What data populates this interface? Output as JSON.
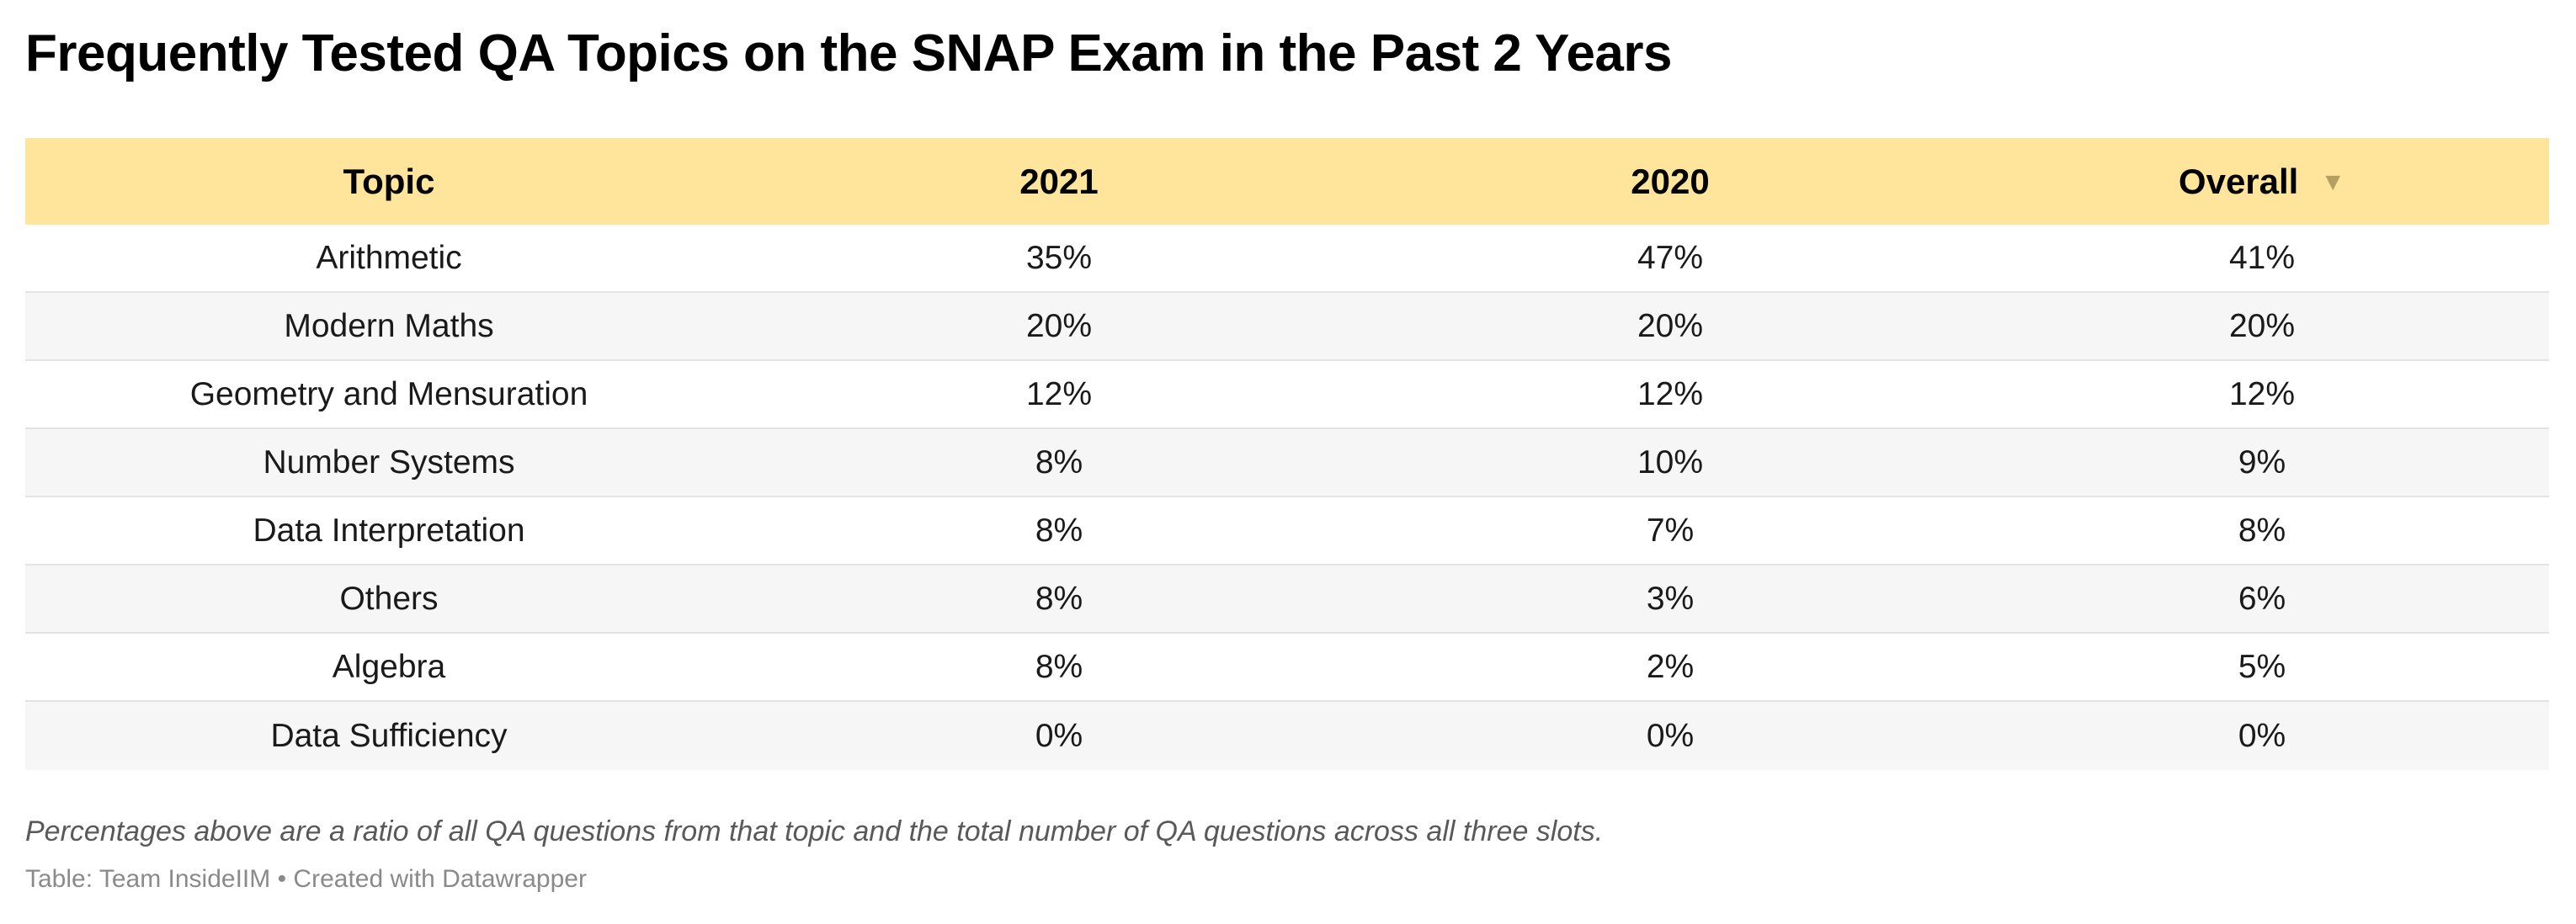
{
  "colors": {
    "header_bg": "#ffe49c",
    "stripe_bg": "#f6f6f6",
    "row_bg": "#ffffff",
    "divider": "#e3e3e3",
    "sort_icon": "#b59f63"
  },
  "chart_data": {
    "type": "table",
    "title": "Frequently Tested QA Topics on the SNAP Exam in the Past 2 Years",
    "columns": [
      "Topic",
      "2021",
      "2020",
      "Overall"
    ],
    "sorted_column": "Overall",
    "sort_direction": "descending",
    "sort_icon": "triangle-down-icon",
    "rows": [
      [
        "Arithmetic",
        "35%",
        "47%",
        "41%"
      ],
      [
        "Modern Maths",
        "20%",
        "20%",
        "20%"
      ],
      [
        "Geometry and Mensuration",
        "12%",
        "12%",
        "12%"
      ],
      [
        "Number Systems",
        "8%",
        "10%",
        "9%"
      ],
      [
        "Data Interpretation",
        "8%",
        "7%",
        "8%"
      ],
      [
        "Others",
        "8%",
        "3%",
        "6%"
      ],
      [
        "Algebra",
        "8%",
        "2%",
        "5%"
      ],
      [
        "Data Sufficiency",
        "0%",
        "0%",
        "0%"
      ]
    ],
    "notes": "Percentages above are a ratio of all QA questions from that topic and the total number of QA questions across all three slots.",
    "source": "Table: Team InsideIIM • Created with Datawrapper"
  }
}
